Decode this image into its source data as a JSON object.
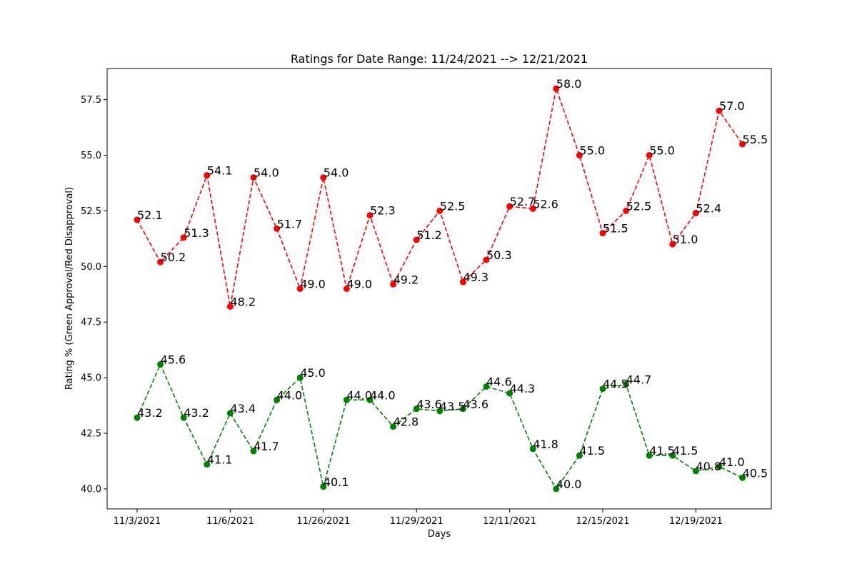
{
  "chart_data": {
    "type": "line",
    "title": "Ratings for Date Range: 11/24/2021 --> 12/21/2021",
    "xlabel": "Days",
    "ylabel": "Rating % (Green Approval/Red Disapproval)",
    "ylim": [
      39.1,
      58.9
    ],
    "yticks": [
      40.0,
      42.5,
      45.0,
      47.5,
      50.0,
      52.5,
      55.0,
      57.5
    ],
    "ytick_labels": [
      "40.0",
      "42.5",
      "45.0",
      "47.5",
      "50.0",
      "52.5",
      "55.0",
      "57.5"
    ],
    "xtick_positions": [
      0,
      4,
      8,
      12,
      16,
      20,
      24
    ],
    "xtick_labels": [
      "11/3/2021",
      "11/6/2021",
      "11/26/2021",
      "11/29/2021",
      "12/11/2021",
      "12/15/2021",
      "12/19/2021"
    ],
    "x": [
      0,
      1,
      2,
      3,
      4,
      5,
      6,
      7,
      8,
      9,
      10,
      11,
      12,
      13,
      14,
      15,
      16,
      17,
      18,
      19,
      20,
      21,
      22,
      23,
      24,
      25,
      26
    ],
    "grid": false,
    "legend": "none",
    "series": [
      {
        "color": "#ff0000",
        "style": "dashed-with-markers",
        "values": [
          52.1,
          50.2,
          51.3,
          54.1,
          48.2,
          54.0,
          51.7,
          49.0,
          54.0,
          49.0,
          52.3,
          49.2,
          51.2,
          52.5,
          49.3,
          50.3,
          52.7,
          52.6,
          58.0,
          55.0,
          51.5,
          52.5,
          55.0,
          51.0,
          52.4,
          57.0,
          55.5
        ]
      },
      {
        "color": "#008000",
        "style": "dashed-with-markers",
        "values": [
          43.2,
          45.6,
          43.2,
          41.1,
          43.4,
          41.7,
          44.0,
          45.0,
          40.1,
          44.0,
          44.0,
          42.8,
          43.6,
          43.5,
          43.6,
          44.6,
          44.3,
          41.8,
          40.0,
          41.5,
          44.5,
          44.7,
          41.5,
          41.5,
          40.8,
          41.0,
          40.5
        ]
      }
    ]
  }
}
